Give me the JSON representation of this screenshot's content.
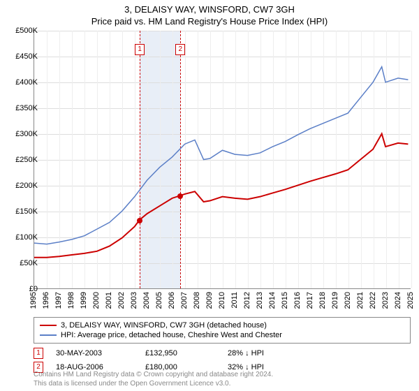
{
  "title": "3, DELAISY WAY, WINSFORD, CW7 3GH",
  "subtitle": "Price paid vs. HM Land Registry's House Price Index (HPI)",
  "chart": {
    "type": "line",
    "background_color": "#ffffff",
    "grid_color": "#dddddd",
    "grid_color_minor": "#eeeeee",
    "x_range": [
      1995,
      2025
    ],
    "y_range": [
      0,
      500000
    ],
    "y_ticks": [
      0,
      50000,
      100000,
      150000,
      200000,
      250000,
      300000,
      350000,
      400000,
      450000,
      500000
    ],
    "y_tick_labels": [
      "£0",
      "£50K",
      "£100K",
      "£150K",
      "£200K",
      "£250K",
      "£300K",
      "£350K",
      "£400K",
      "£450K",
      "£500K"
    ],
    "x_ticks": [
      1995,
      1996,
      1997,
      1998,
      1999,
      2000,
      2001,
      2002,
      2003,
      2004,
      2005,
      2006,
      2007,
      2008,
      2009,
      2010,
      2011,
      2012,
      2013,
      2014,
      2015,
      2016,
      2017,
      2018,
      2019,
      2020,
      2021,
      2022,
      2023,
      2024,
      2025
    ],
    "x_tick_labels": [
      "1995",
      "1996",
      "1997",
      "1998",
      "1999",
      "2000",
      "2001",
      "2002",
      "2003",
      "2004",
      "2005",
      "2006",
      "2007",
      "2008",
      "2009",
      "2010",
      "2011",
      "2012",
      "2013",
      "2014",
      "2015",
      "2016",
      "2017",
      "2018",
      "2019",
      "2020",
      "2021",
      "2022",
      "2023",
      "2024",
      "2025"
    ],
    "tick_fontsize": 11,
    "title_fontsize": 13,
    "shaded_band": {
      "x_start": 2003.4,
      "x_end": 2006.63,
      "color": "#e8eef7"
    },
    "markers": [
      {
        "index": "1",
        "x": 2003.4,
        "label_y": 475000
      },
      {
        "index": "2",
        "x": 2006.63,
        "label_y": 475000
      }
    ],
    "marker_vline_color": "#cc0000",
    "marker_box_border": "#cc0000",
    "marker_box_text_color": "#cc0000",
    "series": [
      {
        "name": "red",
        "color": "#cc0000",
        "line_width": 2,
        "points": [
          [
            1995,
            60000
          ],
          [
            1996,
            60000
          ],
          [
            1997,
            62000
          ],
          [
            1998,
            65000
          ],
          [
            1999,
            68000
          ],
          [
            2000,
            72000
          ],
          [
            2001,
            82000
          ],
          [
            2002,
            98000
          ],
          [
            2003,
            120000
          ],
          [
            2003.4,
            132950
          ],
          [
            2004,
            145000
          ],
          [
            2005,
            160000
          ],
          [
            2006,
            175000
          ],
          [
            2006.63,
            180000
          ],
          [
            2007,
            183000
          ],
          [
            2007.8,
            188000
          ],
          [
            2008.5,
            168000
          ],
          [
            2009,
            170000
          ],
          [
            2010,
            178000
          ],
          [
            2011,
            175000
          ],
          [
            2012,
            173000
          ],
          [
            2013,
            178000
          ],
          [
            2014,
            185000
          ],
          [
            2015,
            192000
          ],
          [
            2016,
            200000
          ],
          [
            2017,
            208000
          ],
          [
            2018,
            215000
          ],
          [
            2019,
            222000
          ],
          [
            2020,
            230000
          ],
          [
            2021,
            250000
          ],
          [
            2022,
            270000
          ],
          [
            2022.7,
            300000
          ],
          [
            2023,
            275000
          ],
          [
            2024,
            282000
          ],
          [
            2024.8,
            280000
          ]
        ],
        "sale_dots": [
          {
            "x": 2003.4,
            "y": 132950
          },
          {
            "x": 2006.63,
            "y": 180000
          }
        ],
        "dot_color": "#cc0000",
        "dot_size": 8
      },
      {
        "name": "blue",
        "color": "#5b7fc7",
        "line_width": 1.5,
        "points": [
          [
            1995,
            88000
          ],
          [
            1996,
            86000
          ],
          [
            1997,
            90000
          ],
          [
            1998,
            95000
          ],
          [
            1999,
            102000
          ],
          [
            2000,
            115000
          ],
          [
            2001,
            128000
          ],
          [
            2002,
            150000
          ],
          [
            2003,
            178000
          ],
          [
            2004,
            210000
          ],
          [
            2005,
            235000
          ],
          [
            2006,
            255000
          ],
          [
            2007,
            280000
          ],
          [
            2007.8,
            288000
          ],
          [
            2008.5,
            250000
          ],
          [
            2009,
            252000
          ],
          [
            2010,
            268000
          ],
          [
            2011,
            260000
          ],
          [
            2012,
            258000
          ],
          [
            2013,
            263000
          ],
          [
            2014,
            275000
          ],
          [
            2015,
            285000
          ],
          [
            2016,
            298000
          ],
          [
            2017,
            310000
          ],
          [
            2018,
            320000
          ],
          [
            2019,
            330000
          ],
          [
            2020,
            340000
          ],
          [
            2021,
            370000
          ],
          [
            2022,
            400000
          ],
          [
            2022.7,
            430000
          ],
          [
            2023,
            400000
          ],
          [
            2024,
            408000
          ],
          [
            2024.8,
            405000
          ]
        ]
      }
    ]
  },
  "legend": {
    "border_color": "#888888",
    "items": [
      {
        "color": "#cc0000",
        "label": "3, DELAISY WAY, WINSFORD, CW7 3GH (detached house)"
      },
      {
        "color": "#5b7fc7",
        "label": "HPI: Average price, detached house, Cheshire West and Chester"
      }
    ]
  },
  "sales": [
    {
      "index": "1",
      "date": "30-MAY-2003",
      "price": "£132,950",
      "relative": "28% ↓ HPI"
    },
    {
      "index": "2",
      "date": "18-AUG-2006",
      "price": "£180,000",
      "relative": "32% ↓ HPI"
    }
  ],
  "attribution_line1": "Contains HM Land Registry data © Crown copyright and database right 2024.",
  "attribution_line2": "This data is licensed under the Open Government Licence v3.0.",
  "colors": {
    "text": "#000000",
    "muted_text": "#888888"
  }
}
